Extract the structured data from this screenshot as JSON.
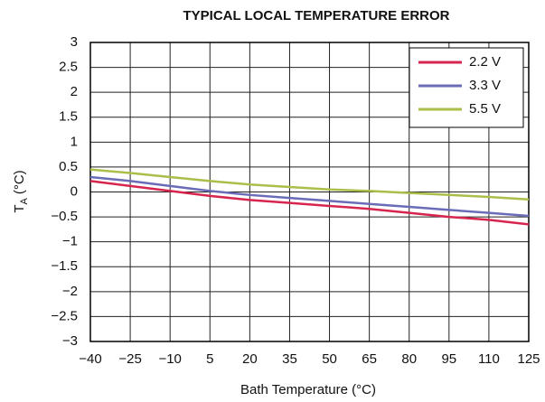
{
  "chart_data": {
    "type": "line",
    "title": "TYPICAL LOCAL TEMPERATURE ERROR",
    "xlabel": "Bath Temperature (°C)",
    "ylabel": [
      "T",
      "A",
      "(°C)"
    ],
    "x": [
      -40,
      -25,
      -10,
      5,
      20,
      35,
      50,
      65,
      80,
      95,
      110,
      125
    ],
    "series": [
      {
        "name": "2.2 V",
        "color": "#d6264f",
        "values": [
          0.22,
          0.12,
          0.02,
          -0.08,
          -0.16,
          -0.22,
          -0.28,
          -0.34,
          -0.42,
          -0.5,
          -0.56,
          -0.65
        ]
      },
      {
        "name": "3.3 V",
        "color": "#6a6cb8",
        "values": [
          0.3,
          0.22,
          0.12,
          0.02,
          -0.06,
          -0.12,
          -0.18,
          -0.24,
          -0.3,
          -0.36,
          -0.42,
          -0.48
        ]
      },
      {
        "name": "5.5 V",
        "color": "#a9bf4a",
        "values": [
          0.45,
          0.38,
          0.3,
          0.22,
          0.15,
          0.1,
          0.05,
          0.02,
          -0.02,
          -0.06,
          -0.1,
          -0.15
        ]
      }
    ],
    "xlim": [
      -40,
      125
    ],
    "xticks": [
      {
        "value": -40,
        "label": "−40"
      },
      {
        "value": -25,
        "label": "−25"
      },
      {
        "value": -10,
        "label": "−10"
      },
      5,
      20,
      35,
      50,
      65,
      80,
      95,
      110,
      125
    ],
    "ylim": [
      -3,
      3
    ],
    "yticks": [
      {
        "value": -3,
        "label": "−3"
      },
      {
        "value": -2.5,
        "label": "−2.5"
      },
      {
        "value": -2,
        "label": "−2"
      },
      {
        "value": -1.5,
        "label": "−1.5"
      },
      {
        "value": -1,
        "label": "−1"
      },
      {
        "value": -0.5,
        "label": "−0.5"
      },
      0,
      0.5,
      1,
      1.5,
      2,
      2.5,
      3
    ],
    "grid": true,
    "legend": "upper right"
  }
}
